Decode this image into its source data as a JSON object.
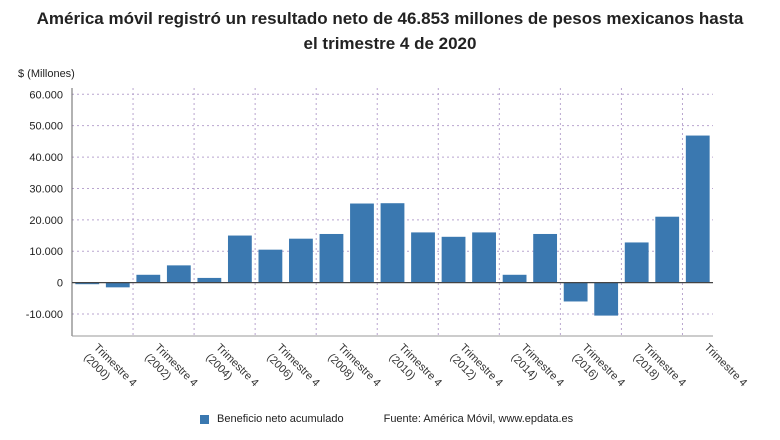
{
  "chart_data": {
    "type": "bar",
    "title_lines": [
      "América móvil registró un resultado neto de 46.853 millones de pesos mexicanos hasta",
      "el trimestre 4 de 2020"
    ],
    "ylabel": "$ (Millones)",
    "xlabel": "",
    "ylim": [
      -17000,
      62000
    ],
    "yticks": [
      -10000,
      0,
      10000,
      20000,
      30000,
      40000,
      50000,
      60000
    ],
    "ytick_labels": [
      "-10.000",
      "0",
      "10.000",
      "20.000",
      "30.000",
      "40.000",
      "50.000",
      "60.000"
    ],
    "grid": true,
    "legend_position": "bottom",
    "series": [
      {
        "name": "Beneficio neto acumulado",
        "color": "#3a78b0",
        "values": [
          -500,
          -1500,
          2500,
          5500,
          1500,
          15000,
          10500,
          14000,
          15500,
          25200,
          25300,
          16000,
          14600,
          16000,
          2500,
          15500,
          -6000,
          -10500,
          12800,
          21000,
          46853
        ]
      }
    ],
    "x_tick_labels": [
      [
        "Trimestre 4",
        "(2000)"
      ],
      [
        "Trimestre 4",
        "(2002)"
      ],
      [
        "Trimestre 4",
        "(2004)"
      ],
      [
        "Trimestre 4",
        "(2006)"
      ],
      [
        "Trimestre 4",
        "(2008)"
      ],
      [
        "Trimestre 4",
        "(2010)"
      ],
      [
        "Trimestre 4",
        "(2012)"
      ],
      [
        "Trimestre 4",
        "(2014)"
      ],
      [
        "Trimestre 4",
        "(2016)"
      ],
      [
        "Trimestre 4",
        "(2018)"
      ],
      [
        "Trimestre 4"
      ]
    ],
    "source": "Fuente: América Móvil, www.epdata.es"
  }
}
